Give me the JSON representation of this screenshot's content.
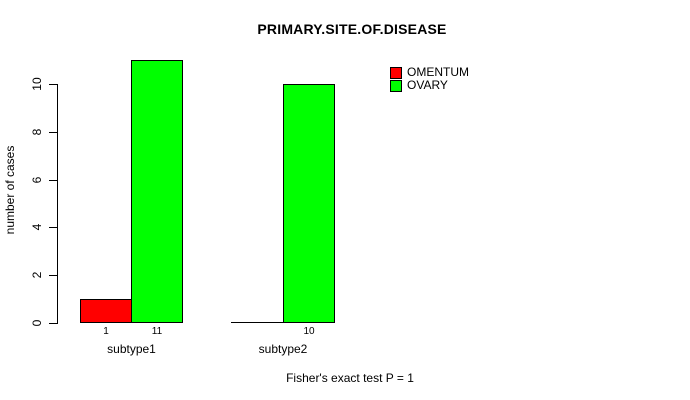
{
  "chart_data": {
    "type": "bar",
    "title": "PRIMARY.SITE.OF.DISEASE",
    "xlabel": "",
    "ylabel": "number of cases",
    "categories": [
      "subtype1",
      "subtype2"
    ],
    "series": [
      {
        "name": "OMENTUM",
        "color": "#ff0000",
        "values": [
          1,
          0
        ]
      },
      {
        "name": "OVARY",
        "color": "#00ff00",
        "values": [
          11,
          10
        ]
      }
    ],
    "bar_value_labels": [
      "1",
      "11",
      "10"
    ],
    "yticks": [
      "0",
      "2",
      "4",
      "6",
      "8",
      "10"
    ],
    "ylim": [
      0,
      11
    ],
    "grid": false,
    "legend_position": "top-right",
    "annotation": "Fisher's exact test P = 1"
  }
}
